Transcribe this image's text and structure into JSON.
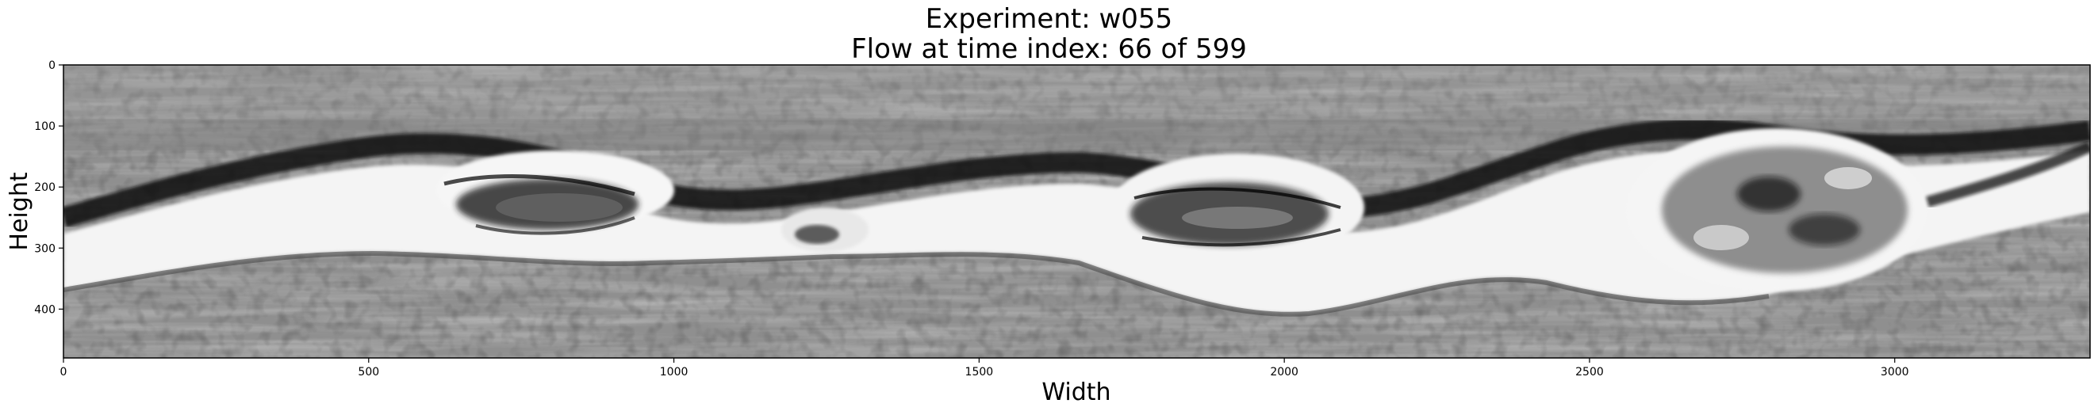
{
  "title": {
    "line1": "Experiment: w055",
    "line2": "Flow at time index: 66 of 599"
  },
  "axes": {
    "xlabel": "Width",
    "ylabel": "Height",
    "x_ticks": [
      "0",
      "500",
      "1000",
      "1500",
      "2000",
      "2500",
      "3000"
    ],
    "y_ticks": [
      "0",
      "100",
      "200",
      "300",
      "400"
    ],
    "x_range": [
      0,
      3320
    ],
    "y_range": [
      0,
      480
    ],
    "y_inverted": true
  },
  "image": {
    "description_colormap": "grayscale"
  }
}
